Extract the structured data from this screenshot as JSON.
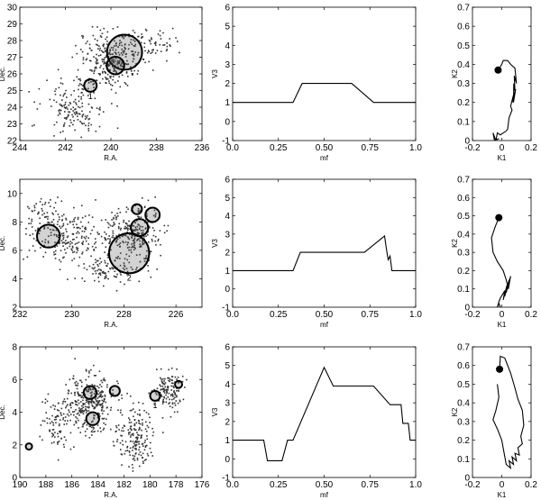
{
  "chart_data": [
    {
      "type": "scatter",
      "row": 1,
      "xlabel": "R.A.",
      "ylabel": "Dec.",
      "xlim": [
        244,
        236
      ],
      "ylim": [
        22,
        30
      ],
      "xticks": [
        244,
        242,
        240,
        238,
        236
      ],
      "yticks": [
        22,
        23,
        24,
        25,
        26,
        27,
        28,
        29,
        30
      ],
      "clusters": [
        {
          "x": 240.1,
          "y": 26.3,
          "sx": 1.0,
          "sy": 1.0,
          "n": 160
        },
        {
          "x": 239.8,
          "y": 27.5,
          "sx": 1.2,
          "sy": 1.1,
          "n": 150
        },
        {
          "x": 241.5,
          "y": 24.0,
          "sx": 1.2,
          "sy": 1.6,
          "n": 170
        },
        {
          "x": 238.2,
          "y": 27.8,
          "sx": 0.9,
          "sy": 0.7,
          "n": 60
        }
      ],
      "circles": [
        {
          "x": 239.4,
          "y": 27.3,
          "r": 1.4,
          "label": ""
        },
        {
          "x": 239.8,
          "y": 26.5,
          "r": 0.7,
          "label": ""
        },
        {
          "x": 240.9,
          "y": 25.3,
          "r": 0.5,
          "label": "1"
        }
      ]
    },
    {
      "type": "line",
      "row": 1,
      "xlabel": "mf",
      "ylabel": "V3",
      "xlim": [
        0,
        1
      ],
      "ylim": [
        -1,
        6
      ],
      "xticks": [
        0.0,
        0.25,
        0.5,
        0.75,
        1.0
      ],
      "yticks": [
        -1,
        0,
        1,
        2,
        3,
        4,
        5,
        6
      ],
      "x": [
        0,
        0.33,
        0.38,
        0.65,
        0.77,
        1.0
      ],
      "y": [
        1,
        1,
        2,
        2,
        1,
        1
      ]
    },
    {
      "type": "line",
      "row": 1,
      "xlabel": "K1",
      "ylabel": "K2",
      "xlim": [
        -0.2,
        0.2
      ],
      "ylim": [
        0,
        0.7
      ],
      "xticks": [
        -0.2,
        0,
        0.2
      ],
      "yticks": [
        0,
        0.1,
        0.2,
        0.3,
        0.4,
        0.5,
        0.6,
        0.7
      ],
      "x": [
        -0.025,
        0.0,
        0.01,
        0.04,
        0.06,
        0.09,
        0.1,
        0.085,
        0.09,
        0.082,
        0.08,
        0.095,
        0.07,
        0.08,
        0.06,
        0.07,
        0.05,
        0.04,
        0.03,
        -0.01,
        -0.03,
        -0.04,
        -0.05,
        -0.06,
        -0.05,
        -0.02
      ],
      "y": [
        0.37,
        0.4,
        0.42,
        0.42,
        0.4,
        0.38,
        0.3,
        0.34,
        0.26,
        0.3,
        0.2,
        0.27,
        0.2,
        0.24,
        0.18,
        0.16,
        0.12,
        0.06,
        0.05,
        0.03,
        0.04,
        0.0,
        0.02,
        0.04,
        0.0,
        0.01
      ],
      "marker": {
        "x": -0.025,
        "y": 0.37
      }
    },
    {
      "type": "scatter",
      "row": 2,
      "xlabel": "R.A.",
      "ylabel": "Dec.",
      "xlim": [
        232,
        225
      ],
      "ylim": [
        2,
        11
      ],
      "xticks": [
        232,
        230,
        228,
        226
      ],
      "yticks": [
        2,
        4,
        6,
        8,
        10
      ],
      "clusters": [
        {
          "x": 227.6,
          "y": 7.0,
          "sx": 0.9,
          "sy": 1.6,
          "n": 260
        },
        {
          "x": 230.1,
          "y": 7.0,
          "sx": 1.5,
          "sy": 1.5,
          "n": 220
        },
        {
          "x": 228.7,
          "y": 4.5,
          "sx": 0.9,
          "sy": 0.8,
          "n": 90
        },
        {
          "x": 231.0,
          "y": 8.6,
          "sx": 0.7,
          "sy": 1.0,
          "n": 60
        }
      ],
      "circles": [
        {
          "x": 227.8,
          "y": 5.8,
          "r": 1.4,
          "label": "2"
        },
        {
          "x": 230.9,
          "y": 7.0,
          "r": 0.8,
          "label": ""
        },
        {
          "x": 227.4,
          "y": 7.6,
          "r": 0.6,
          "label": ""
        },
        {
          "x": 226.9,
          "y": 8.5,
          "r": 0.5,
          "label": ""
        },
        {
          "x": 227.5,
          "y": 8.9,
          "r": 0.35,
          "label": ""
        }
      ]
    },
    {
      "type": "line",
      "row": 2,
      "xlabel": "mf",
      "ylabel": "V3",
      "xlim": [
        0,
        1
      ],
      "ylim": [
        -1,
        6
      ],
      "xticks": [
        0.0,
        0.25,
        0.5,
        0.75,
        1.0
      ],
      "yticks": [
        -1,
        0,
        1,
        2,
        3,
        4,
        5,
        6
      ],
      "x": [
        0,
        0.33,
        0.37,
        0.72,
        0.83,
        0.84,
        0.85,
        0.86,
        0.87,
        1.0
      ],
      "y": [
        1,
        1,
        2,
        2,
        2.9,
        2.2,
        1.6,
        1.8,
        1,
        1
      ],
      "pairs": true
    },
    {
      "type": "line",
      "row": 2,
      "xlabel": "K1",
      "ylabel": "K2",
      "xlim": [
        -0.2,
        0.2
      ],
      "ylim": [
        0,
        0.7
      ],
      "xticks": [
        -0.2,
        0,
        0.2
      ],
      "yticks": [
        0,
        0.1,
        0.2,
        0.3,
        0.4,
        0.5,
        0.6,
        0.7
      ],
      "x": [
        -0.02,
        -0.045,
        -0.07,
        -0.06,
        -0.03,
        0.01,
        0.03,
        0.045,
        0.06,
        0.03,
        0.05,
        0.02,
        0.035,
        0.01,
        0.02,
        -0.01,
        -0.02,
        -0.03,
        -0.02,
        -0.01
      ],
      "y": [
        0.49,
        0.44,
        0.38,
        0.3,
        0.25,
        0.2,
        0.15,
        0.1,
        0.17,
        0.08,
        0.15,
        0.06,
        0.12,
        0.04,
        0.09,
        0.05,
        0.03,
        0.0,
        0.02,
        0.0
      ],
      "marker": {
        "x": -0.02,
        "y": 0.49
      }
    },
    {
      "type": "scatter",
      "row": 3,
      "xlabel": "R.A.",
      "ylabel": "Dec.",
      "xlim": [
        190,
        176
      ],
      "ylim": [
        0,
        8
      ],
      "xticks": [
        190,
        188,
        186,
        184,
        182,
        180,
        178,
        176
      ],
      "yticks": [
        0,
        2,
        4,
        6,
        8
      ],
      "clusters": [
        {
          "x": 184.6,
          "y": 4.5,
          "sx": 1.6,
          "sy": 1.4,
          "n": 320
        },
        {
          "x": 181.2,
          "y": 2.5,
          "sx": 1.2,
          "sy": 1.6,
          "n": 180
        },
        {
          "x": 178.6,
          "y": 5.3,
          "sx": 1.0,
          "sy": 0.9,
          "n": 130
        },
        {
          "x": 187.0,
          "y": 3.3,
          "sx": 1.1,
          "sy": 1.3,
          "n": 90
        }
      ],
      "circles": [
        {
          "x": 184.6,
          "y": 5.2,
          "r": 0.9,
          "label": ""
        },
        {
          "x": 184.4,
          "y": 3.6,
          "r": 0.9,
          "label": "2"
        },
        {
          "x": 182.7,
          "y": 5.3,
          "r": 0.7,
          "label": ""
        },
        {
          "x": 179.6,
          "y": 5.0,
          "r": 0.7,
          "label": "1"
        },
        {
          "x": 177.8,
          "y": 5.7,
          "r": 0.5,
          "label": ""
        },
        {
          "x": 189.3,
          "y": 1.9,
          "r": 0.4,
          "label": ""
        }
      ]
    },
    {
      "type": "line",
      "row": 3,
      "xlabel": "mf",
      "ylabel": "V3",
      "xlim": [
        0,
        1
      ],
      "ylim": [
        -1,
        6
      ],
      "xticks": [
        0.0,
        0.25,
        0.5,
        0.75,
        1.0
      ],
      "yticks": [
        -1,
        0,
        1,
        2,
        3,
        4,
        5,
        6
      ],
      "x": [
        0,
        0.17,
        0.19,
        0.27,
        0.3,
        0.33,
        0.5,
        0.55,
        0.77,
        0.86,
        0.92,
        0.93,
        0.96,
        0.97,
        1.0
      ],
      "y": [
        1,
        1,
        -0.1,
        -0.1,
        1,
        1,
        4.9,
        3.9,
        3.9,
        2.9,
        2.9,
        1.9,
        1.9,
        1.0,
        1.0
      ]
    },
    {
      "type": "line",
      "row": 3,
      "xlabel": "K1",
      "ylabel": "K2",
      "xlim": [
        -0.2,
        0.2
      ],
      "ylim": [
        0,
        0.7
      ],
      "xticks": [
        -0.2,
        0,
        0.2
      ],
      "yticks": [
        0,
        0.1,
        0.2,
        0.3,
        0.4,
        0.5,
        0.6,
        0.7
      ],
      "x": [
        -0.015,
        -0.01,
        0.02,
        0.06,
        0.09,
        0.11,
        0.14,
        0.15,
        0.13,
        0.14,
        0.11,
        0.12,
        0.09,
        0.1,
        0.07,
        0.08,
        0.05,
        0.06,
        0.03,
        0.0,
        -0.03,
        -0.06,
        -0.04,
        -0.02,
        -0.03
      ],
      "y": [
        0.58,
        0.65,
        0.64,
        0.56,
        0.48,
        0.42,
        0.36,
        0.28,
        0.22,
        0.18,
        0.16,
        0.12,
        0.13,
        0.09,
        0.11,
        0.07,
        0.09,
        0.05,
        0.07,
        0.2,
        0.26,
        0.31,
        0.36,
        0.43,
        0.5
      ],
      "marker": {
        "x": -0.015,
        "y": 0.58
      }
    }
  ]
}
